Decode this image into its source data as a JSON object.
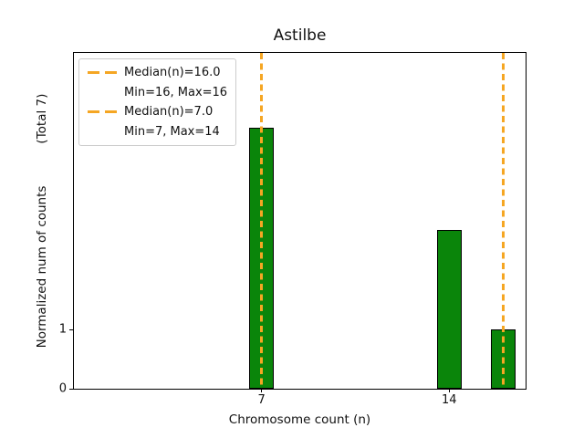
{
  "figure": {
    "title": "Astilbe"
  },
  "axes": {
    "xlabel": "Chromosome count (n)",
    "ylabel": "Normalized num of counts",
    "ylabel_total": "(Total 7)"
  },
  "legend": {
    "entries": [
      {
        "label": "Median(n)=16.0",
        "handle": "orange-dashed-line"
      },
      {
        "label": "Min=16, Max=16",
        "handle": "none"
      },
      {
        "label": "Median(n)=7.0",
        "handle": "orange-dashed-line"
      },
      {
        "label": "Min=7, Max=14",
        "handle": "none"
      }
    ]
  },
  "colors": {
    "bar_fill": "#0a850a",
    "bar_edge": "#000000",
    "median_line": "#f5a623",
    "spine": "#000000",
    "legend_border": "#cccccc"
  },
  "chart_data": {
    "type": "bar",
    "title": "Astilbe",
    "xlabel": "Chromosome count (n)",
    "ylabel": "Normalized num of counts    (Total 7)",
    "x": [
      7,
      14,
      16
    ],
    "values": [
      4.42,
      2.69,
      1.0
    ],
    "bar_width": 0.92,
    "bar_color": "green",
    "xticks": [
      "7",
      "14"
    ],
    "xtick_values": [
      7,
      14
    ],
    "yticks": [
      "0",
      "1"
    ],
    "ytick_values": [
      0,
      1
    ],
    "xlim": [
      0,
      16.85
    ],
    "ylim": [
      0,
      5.69
    ],
    "grid": false,
    "legend_position": "upper left",
    "median_lines": [
      {
        "x": 16,
        "label": "Median(n)=16.0",
        "note": "Min=16, Max=16",
        "style": "dashed",
        "color": "orange"
      },
      {
        "x": 7,
        "label": "Median(n)=7.0",
        "note": "Min=7, Max=14",
        "style": "dashed",
        "color": "orange"
      }
    ]
  }
}
